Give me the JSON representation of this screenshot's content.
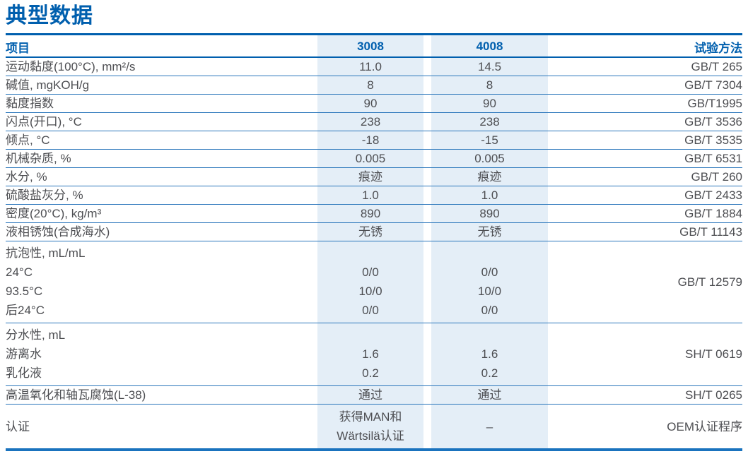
{
  "page": {
    "title": "典型数据"
  },
  "colors": {
    "accent_blue": "#005fae",
    "row_line_blue": "#2a76bb",
    "thick_bottom_blue": "#1a73be",
    "column_highlight": "#e4eef7",
    "body_text": "#4d4e52"
  },
  "table": {
    "headers": {
      "item": "项目",
      "col1": "3008",
      "col2": "4008",
      "method": "试验方法"
    },
    "rows": [
      {
        "type": "single",
        "item": "运动黏度(100°C), mm²/s",
        "v1": "11.0",
        "v2": "14.5",
        "method": "GB/T 265"
      },
      {
        "type": "single",
        "item": "碱值, mgKOH/g",
        "v1": "8",
        "v2": "8",
        "method": "GB/T 7304"
      },
      {
        "type": "single",
        "item": "黏度指数",
        "v1": "90",
        "v2": "90",
        "method": "GB/T1995"
      },
      {
        "type": "single",
        "item": "闪点(开口), °C",
        "v1": "238",
        "v2": "238",
        "method": "GB/T 3536"
      },
      {
        "type": "single",
        "item": "倾点, °C",
        "v1": "-18",
        "v2": "-15",
        "method": "GB/T 3535"
      },
      {
        "type": "single",
        "item": "机械杂质, %",
        "v1": "0.005",
        "v2": "0.005",
        "method": "GB/T 6531"
      },
      {
        "type": "single",
        "item": "水分, %",
        "v1": "痕迹",
        "v2": "痕迹",
        "method": "GB/T 260"
      },
      {
        "type": "single",
        "item": "硫酸盐灰分, %",
        "v1": "1.0",
        "v2": "1.0",
        "method": "GB/T 2433"
      },
      {
        "type": "single",
        "item": "密度(20°C), kg/m³",
        "v1": "890",
        "v2": "890",
        "method": "GB/T 1884"
      },
      {
        "type": "single",
        "item": "液相锈蚀(合成海水)",
        "v1": "无锈",
        "v2": "无锈",
        "method": "GB/T 11143"
      },
      {
        "type": "group",
        "method": "GB/T 12579",
        "lines": [
          {
            "item": "抗泡性, mL/mL",
            "v1": "",
            "v2": ""
          },
          {
            "item": "24°C",
            "v1": "0/0",
            "v2": "0/0"
          },
          {
            "item": "93.5°C",
            "v1": "10/0",
            "v2": "10/0"
          },
          {
            "item": "后24°C",
            "v1": "0/0",
            "v2": "0/0"
          }
        ]
      },
      {
        "type": "group",
        "method": "SH/T 0619",
        "lines": [
          {
            "item": "分水性, mL",
            "v1": "",
            "v2": ""
          },
          {
            "item": "游离水",
            "v1": "1.6",
            "v2": "1.6"
          },
          {
            "item": "乳化液",
            "v1": "0.2",
            "v2": "0.2"
          }
        ]
      },
      {
        "type": "single",
        "item": "高温氧化和轴瓦腐蚀(L-38)",
        "v1": "通过",
        "v2": "通过",
        "method": "SH/T 0265"
      },
      {
        "type": "single",
        "last": true,
        "item": "认证",
        "v1": "获得MAN和\nWärtsilä认证",
        "v2": "–",
        "method": "OEM认证程序"
      }
    ]
  }
}
